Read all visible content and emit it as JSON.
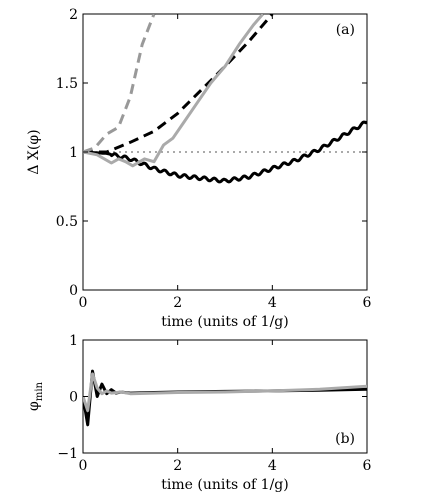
{
  "chart_data": [
    {
      "type": "line",
      "panel_label": "(a)",
      "title": "",
      "xlabel": "time (units of 1/g)",
      "ylabel": "Δ X(φ)",
      "xlim": [
        0,
        6
      ],
      "ylim": [
        0,
        2
      ],
      "xticks": [
        0,
        2,
        4,
        6
      ],
      "yticks": [
        0,
        0.5,
        1,
        1.5,
        2
      ],
      "ytick_labels": [
        "0",
        "0.5",
        "1",
        "1.5",
        "2"
      ],
      "grid": false,
      "reference_line": {
        "y": 1,
        "style": "dotted",
        "color": "#777777"
      },
      "series": [
        {
          "color": "#000000",
          "style": "solid",
          "wavy": true,
          "x": [
            0,
            0.5,
            1.0,
            1.5,
            2.0,
            2.5,
            3.0,
            3.5,
            4.0,
            4.5,
            5.0,
            5.5,
            6.0
          ],
          "y": [
            1.0,
            0.99,
            0.95,
            0.88,
            0.83,
            0.81,
            0.79,
            0.82,
            0.88,
            0.94,
            1.02,
            1.12,
            1.22
          ]
        },
        {
          "color": "#000000",
          "style": "dashed",
          "x": [
            0,
            0.5,
            1.0,
            1.5,
            2.0,
            2.5,
            3.0,
            3.5,
            4.0
          ],
          "y": [
            1.0,
            1.0,
            1.07,
            1.15,
            1.28,
            1.45,
            1.62,
            1.8,
            2.0
          ]
        },
        {
          "color": "#999999",
          "style": "dashed",
          "x": [
            0,
            0.25,
            0.5,
            0.75,
            1.0,
            1.25,
            1.5
          ],
          "y": [
            1.0,
            1.03,
            1.13,
            1.18,
            1.4,
            1.78,
            2.0
          ]
        },
        {
          "color": "#aaaaaa",
          "style": "solid",
          "x": [
            0,
            0.3,
            0.6,
            0.75,
            0.9,
            1.05,
            1.3,
            1.5,
            1.7,
            1.9,
            2.1,
            2.4,
            2.7,
            3.0,
            3.3,
            3.6,
            3.8
          ],
          "y": [
            1.0,
            0.98,
            0.92,
            0.95,
            0.93,
            0.9,
            0.95,
            0.93,
            1.05,
            1.1,
            1.2,
            1.35,
            1.5,
            1.62,
            1.78,
            1.92,
            2.0
          ]
        }
      ]
    },
    {
      "type": "line",
      "panel_label": "(b)",
      "title": "",
      "xlabel": "time (units of 1/g)",
      "ylabel": "φ",
      "ylabel_subscript": "min",
      "xlim": [
        0,
        6
      ],
      "ylim": [
        -1,
        1
      ],
      "xticks": [
        0,
        2,
        4,
        6
      ],
      "yticks": [
        -1,
        0,
        1
      ],
      "ytick_labels": [
        "−1",
        "0",
        "1"
      ],
      "grid": false,
      "series": [
        {
          "color": "#000000",
          "style": "solid",
          "x": [
            0,
            0.1,
            0.2,
            0.3,
            0.4,
            0.5,
            0.6,
            0.7,
            0.8,
            1.0,
            1.5,
            2.0,
            3.0,
            4.0,
            5.0,
            6.0
          ],
          "y": [
            0.0,
            -0.5,
            0.45,
            0.0,
            0.22,
            0.05,
            0.12,
            0.06,
            0.08,
            0.06,
            0.07,
            0.08,
            0.09,
            0.1,
            0.11,
            0.13
          ]
        },
        {
          "color": "#aaaaaa",
          "style": "solid",
          "x": [
            0,
            0.1,
            0.2,
            0.3,
            0.4,
            0.5,
            0.6,
            0.8,
            1.0,
            1.5,
            2.0,
            3.0,
            4.0,
            5.0,
            6.0
          ],
          "y": [
            0.0,
            -0.25,
            0.4,
            0.15,
            0.05,
            0.1,
            0.06,
            0.08,
            0.05,
            0.06,
            0.07,
            0.08,
            0.1,
            0.13,
            0.18
          ]
        }
      ]
    }
  ]
}
